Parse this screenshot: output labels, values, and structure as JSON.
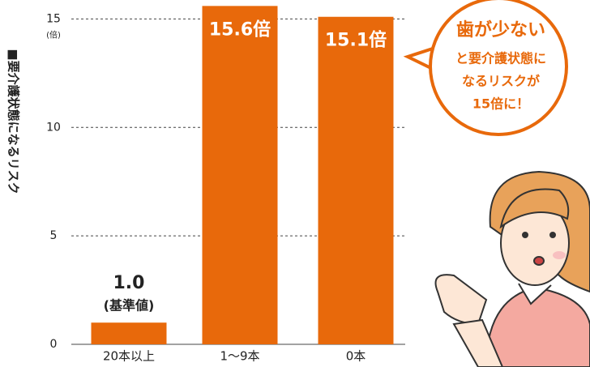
{
  "chart_data": {
    "type": "bar",
    "y_axis_label": "■要介護状態になるリスク",
    "y_unit": "(倍)",
    "categories": [
      "20本以上",
      "1〜9本",
      "0本"
    ],
    "values": [
      1.0,
      15.6,
      15.1
    ],
    "value_labels": [
      "1.0",
      "15.6倍",
      "15.1倍"
    ],
    "baseline_note": "(基準値)",
    "color": "#e8690b",
    "ylim": [
      0,
      15.8
    ],
    "yticks": [
      0,
      5,
      10,
      15
    ],
    "grid": true,
    "callout": [
      "歯が少ない",
      "と要介護状態に",
      "なるリスクが",
      "15倍に！"
    ]
  }
}
